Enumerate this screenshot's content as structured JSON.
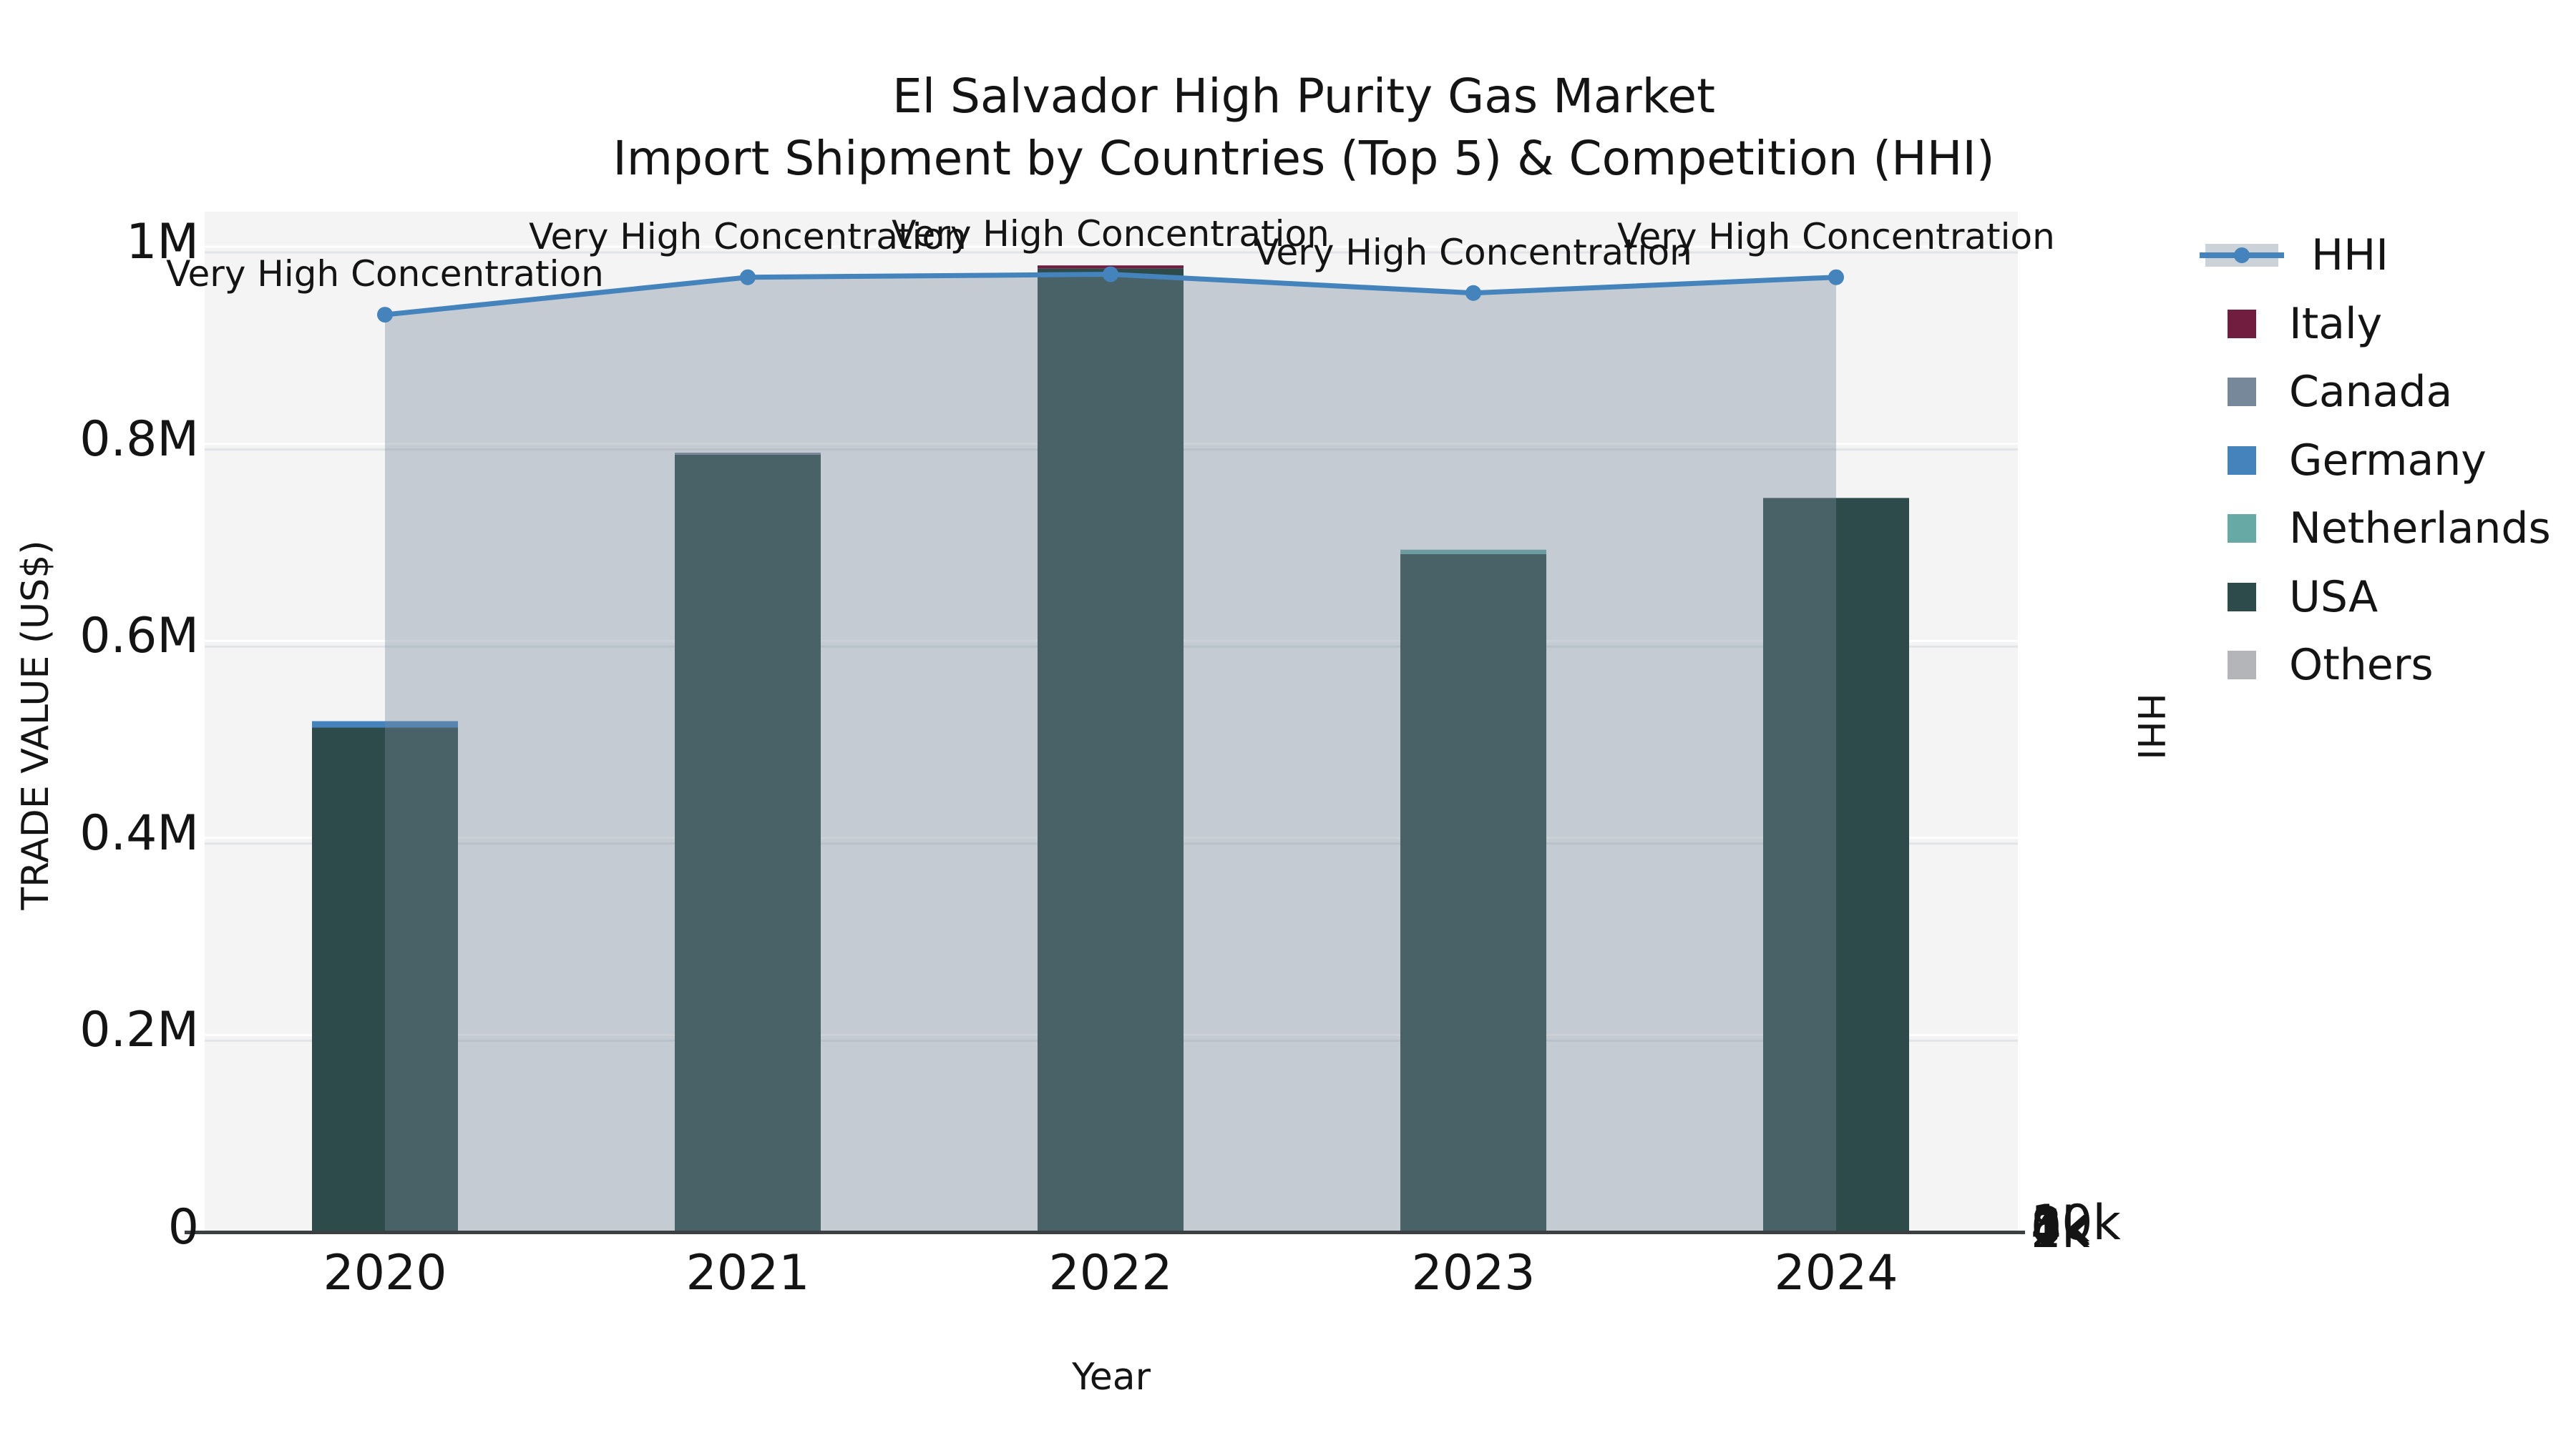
{
  "title": {
    "line1": "El Salvador High Purity Gas Market",
    "line2": "Import Shipment by Countries (Top 5) & Competition (HHI)"
  },
  "axes": {
    "x": {
      "label": "Year",
      "ticks": [
        "2020",
        "2021",
        "2022",
        "2023",
        "2024"
      ]
    },
    "y_left": {
      "label": "TRADE VALUE (US$)",
      "ticks": [
        {
          "text": "0",
          "value": 0
        },
        {
          "text": "0.2M",
          "value": 200000
        },
        {
          "text": "0.4M",
          "value": 400000
        },
        {
          "text": "0.6M",
          "value": 600000
        },
        {
          "text": "0.8M",
          "value": 800000
        },
        {
          "text": "1M",
          "value": 1000000
        }
      ]
    },
    "y_right": {
      "label": "HHI",
      "ticks": [
        {
          "text": "0",
          "value": 0
        },
        {
          "text": "2k",
          "value": 2000
        },
        {
          "text": "4k",
          "value": 4000
        },
        {
          "text": "6k",
          "value": 6000
        },
        {
          "text": "8k",
          "value": 8000
        },
        {
          "text": "10k",
          "value": 10000
        }
      ]
    }
  },
  "annotation_text": "Very High Concentration",
  "legend": {
    "items": [
      {
        "label": "HHI",
        "type": "line",
        "color_key": "hhi"
      },
      {
        "label": "Italy",
        "type": "square",
        "color_key": "italy"
      },
      {
        "label": "Canada",
        "type": "square",
        "color_key": "canada"
      },
      {
        "label": "Germany",
        "type": "square",
        "color_key": "germany"
      },
      {
        "label": "Netherlands",
        "type": "square",
        "color_key": "netherlands"
      },
      {
        "label": "USA",
        "type": "square",
        "color_key": "usa"
      },
      {
        "label": "Others",
        "type": "square",
        "color_key": "others"
      }
    ]
  },
  "colors": {
    "hhi": "#4483bb",
    "italy": "#701d40",
    "canada": "#77889b",
    "germany": "#4583bd",
    "netherlands": "#67a9a4",
    "usa": "#2d4b4a",
    "others": "#b3b5b8",
    "hhi_area_fill": "rgba(119,136,153,0.38)",
    "plot_background": "#f4f4f5",
    "spine": "#3d4043"
  },
  "chart_data": {
    "type": "bar+line",
    "categories": [
      "2020",
      "2021",
      "2022",
      "2023",
      "2024"
    ],
    "stacked_bar_series_bottom_to_top": [
      {
        "name": "USA",
        "color_key": "usa",
        "values": [
          512000,
          789000,
          978000,
          688000,
          745000
        ]
      },
      {
        "name": "Netherlands",
        "color_key": "netherlands",
        "values": [
          0,
          0,
          0,
          4500,
          0
        ]
      },
      {
        "name": "Germany",
        "color_key": "germany",
        "values": [
          6500,
          0,
          0,
          0,
          0
        ]
      },
      {
        "name": "Canada",
        "color_key": "canada",
        "values": [
          0,
          2000,
          0,
          0,
          0
        ]
      },
      {
        "name": "Italy",
        "color_key": "italy",
        "values": [
          0,
          0,
          3000,
          0,
          0
        ]
      },
      {
        "name": "Others",
        "color_key": "others",
        "values": [
          0,
          0,
          0,
          0,
          0
        ]
      }
    ],
    "bar_totals": [
      518500,
      791000,
      981000,
      692500,
      745000
    ],
    "line_series": {
      "name": "HHI",
      "axis": "right",
      "values": [
        9310,
        9690,
        9720,
        9530,
        9690
      ],
      "has_area_fill": true,
      "point_annotations": [
        "Very High Concentration",
        "Very High Concentration",
        "Very High Concentration",
        "Very High Concentration",
        "Very High Concentration"
      ]
    },
    "xlabel": "Year",
    "ylabel_left": "TRADE VALUE (US$)",
    "ylabel_right": "HHI",
    "ylim_left": [
      0,
      1000000
    ],
    "ylim_right": [
      0,
      10000
    ],
    "grid": true,
    "legend_position": "right"
  }
}
